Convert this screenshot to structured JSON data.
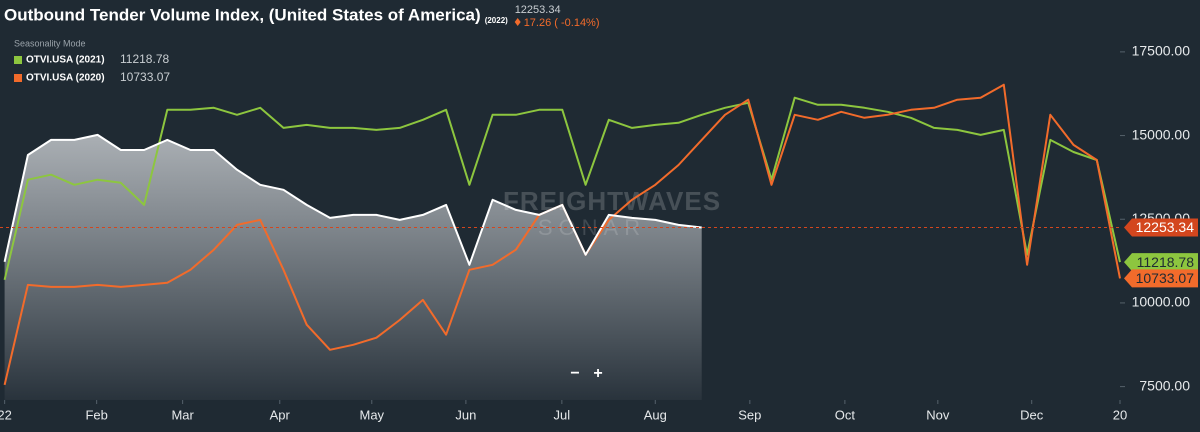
{
  "chart_data": {
    "type": "line",
    "title": "Outbound Tender Volume Index, (United States of America)",
    "title_tag": "(2022)",
    "current_change": "17.26 ( -0.14%)",
    "subtitle": "Seasonality Mode",
    "watermark": [
      "FREIGHTWAVES",
      "SONAR"
    ],
    "zoom_controls": [
      "−",
      "+"
    ],
    "xlim": [
      -0.2,
      48.0
    ],
    "xticks": [
      {
        "value": 0,
        "label": "22"
      },
      {
        "value": 3.96,
        "label": "Feb"
      },
      {
        "value": 7.66,
        "label": "Mar"
      },
      {
        "value": 11.84,
        "label": "Apr"
      },
      {
        "value": 15.8,
        "label": "May"
      },
      {
        "value": 19.85,
        "label": "Jun"
      },
      {
        "value": 23.98,
        "label": "Jul"
      },
      {
        "value": 28.0,
        "label": "Aug"
      },
      {
        "value": 32.07,
        "label": "Sep"
      },
      {
        "value": 36.16,
        "label": "Oct"
      },
      {
        "value": 40.16,
        "label": "Nov"
      },
      {
        "value": 44.2,
        "label": "Dec"
      },
      {
        "value": 48.0,
        "label": "20"
      }
    ],
    "ylim": [
      7100,
      19050
    ],
    "yticks": [
      {
        "value": 7500,
        "label": "7500.00"
      },
      {
        "value": 10000,
        "label": "10000.00"
      },
      {
        "value": 12500,
        "label": "12500.00"
      },
      {
        "value": 15000,
        "label": "15000.00"
      },
      {
        "value": 17500,
        "label": "17500.00"
      }
    ],
    "grid": false,
    "series": [
      {
        "name": "OTVI.USA",
        "color": "#ffffff",
        "area": true,
        "legend": false,
        "values": [
          11230,
          14420,
          14870,
          14870,
          15020,
          14570,
          14570,
          14870,
          14570,
          14570,
          13980,
          13530,
          13380,
          12930,
          12540,
          12630,
          12630,
          12480,
          12630,
          12930,
          11140,
          13080,
          12780,
          12630,
          12930,
          11440,
          12630,
          12540,
          12480,
          12330,
          12253.34,
          null,
          null,
          null,
          null,
          null,
          null,
          null,
          null,
          null,
          null,
          null,
          null,
          null,
          null,
          null,
          null,
          null,
          null
        ],
        "badge_color": "#d3461e"
      },
      {
        "name": "OTVI.USA (2021)",
        "color": "#8dc63f",
        "legend": true,
        "values": [
          10690,
          13680,
          13830,
          13530,
          13680,
          13590,
          12930,
          15770,
          15770,
          15830,
          15620,
          15830,
          15230,
          15320,
          15230,
          15230,
          15170,
          15230,
          15470,
          15770,
          13530,
          15620,
          15620,
          15770,
          15770,
          13530,
          15470,
          15230,
          15320,
          15380,
          15620,
          15830,
          15980,
          13680,
          16130,
          15920,
          15920,
          15830,
          15710,
          15530,
          15230,
          15170,
          15020,
          15170,
          11440,
          14870,
          14510,
          14270,
          11218.78
        ],
        "badge_color": "#8dc63f"
      },
      {
        "name": "OTVI.USA (2020)",
        "color": "#f26b2b",
        "legend": true,
        "values": [
          7550,
          10540,
          10480,
          10480,
          10540,
          10480,
          10540,
          10600,
          10990,
          11590,
          12330,
          12480,
          10990,
          9350,
          8600,
          8750,
          8960,
          9490,
          10090,
          9050,
          10990,
          11140,
          11590,
          12630,
          12930,
          11440,
          12480,
          13080,
          13530,
          14120,
          14870,
          15620,
          16070,
          13530,
          15620,
          15470,
          15710,
          15530,
          15620,
          15770,
          15830,
          16070,
          16130,
          16520,
          11140,
          15620,
          14720,
          14270,
          10733.07
        ],
        "badge_color": "#f26b2b"
      }
    ]
  }
}
